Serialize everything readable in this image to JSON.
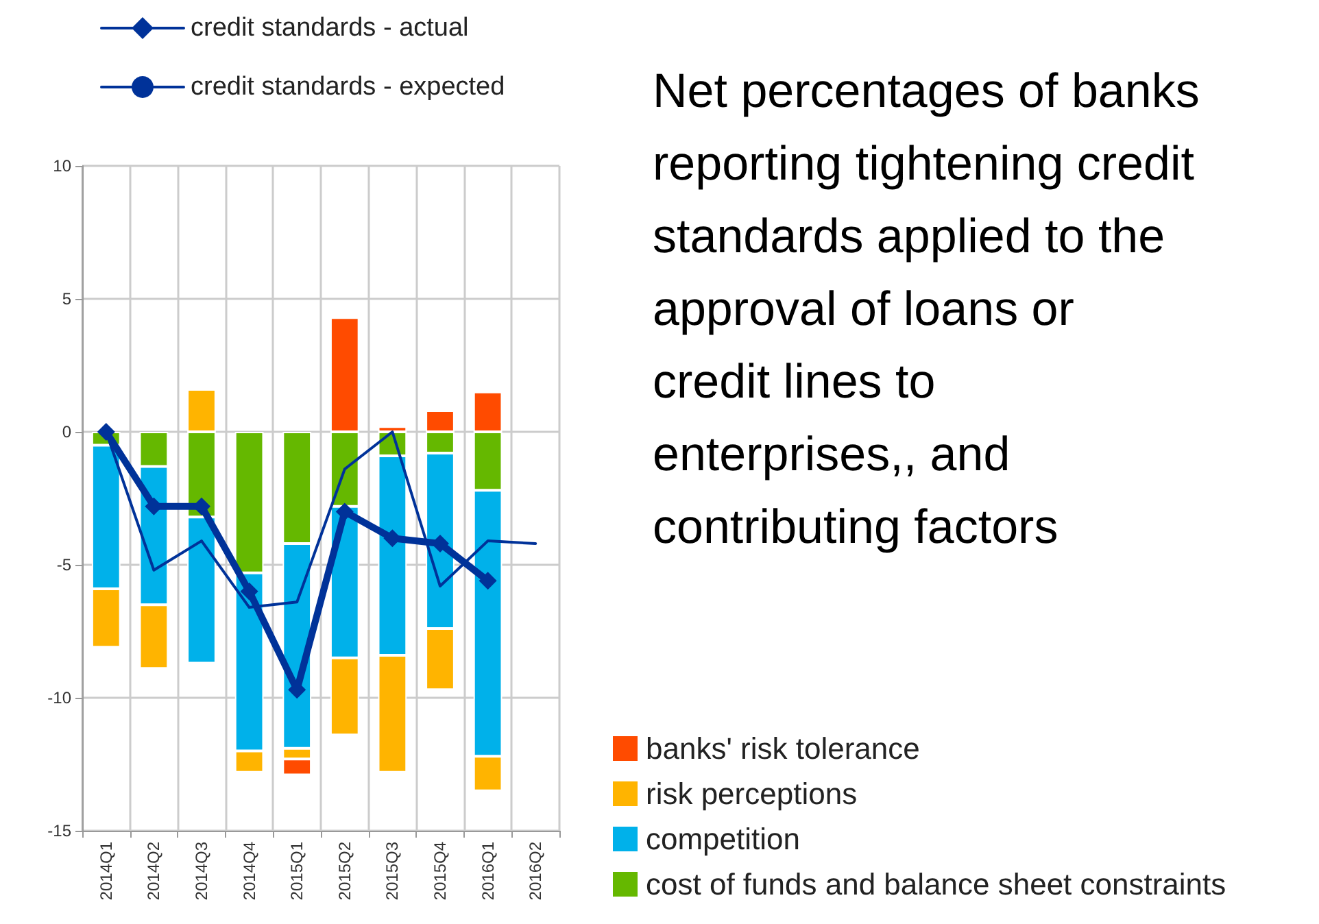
{
  "chart_data": {
    "type": "bar",
    "stacked": true,
    "title": "Net percentages of banks reporting tightening credit standards applied to the approval of loans or credit lines to enterprises,, and contributing factors",
    "categories": [
      "2014Q1",
      "2014Q2",
      "2014Q3",
      "2014Q4",
      "2015Q1",
      "2015Q2",
      "2015Q3",
      "2015Q4",
      "2016Q1",
      "2016Q2"
    ],
    "series": [
      {
        "name": "cost of funds and balance sheet constraints",
        "color": "#65b800",
        "values": [
          -0.5,
          -1.3,
          -3.2,
          -5.3,
          -4.2,
          -2.8,
          -0.9,
          -0.8,
          -2.2,
          null
        ]
      },
      {
        "name": "competition",
        "color": "#00b1ea",
        "values": [
          -5.4,
          -5.2,
          -5.5,
          -6.7,
          -7.7,
          -5.7,
          -7.5,
          -6.6,
          -10.0,
          null
        ]
      },
      {
        "name": "risk perceptions",
        "color": "#ffb400",
        "values": [
          -2.2,
          -2.4,
          1.6,
          -0.8,
          -0.4,
          -2.9,
          -4.4,
          -2.3,
          -1.3,
          null
        ]
      },
      {
        "name": "banks' risk tolerance",
        "color": "#ff4b00",
        "values": [
          null,
          null,
          null,
          null,
          -0.6,
          4.3,
          0.2,
          0.8,
          1.5,
          null
        ]
      },
      {
        "name": "credit standards - actual",
        "type": "line",
        "marker": "diamond",
        "color": "#003299",
        "values": [
          0,
          -2.8,
          -2.8,
          -6.0,
          -9.7,
          -3.0,
          -4.0,
          -4.2,
          -5.6,
          null
        ]
      },
      {
        "name": "credit standards - expected",
        "type": "line",
        "marker": "none",
        "color": "#003299",
        "values": [
          0,
          -5.2,
          -4.1,
          -6.6,
          -6.4,
          -1.4,
          0,
          -5.8,
          -4.1,
          -4.2
        ]
      }
    ],
    "ylim": [
      -15,
      10
    ],
    "yticks": [
      -15,
      -10,
      -5,
      0,
      5,
      10
    ],
    "grid": true,
    "legend": "top right"
  }
}
